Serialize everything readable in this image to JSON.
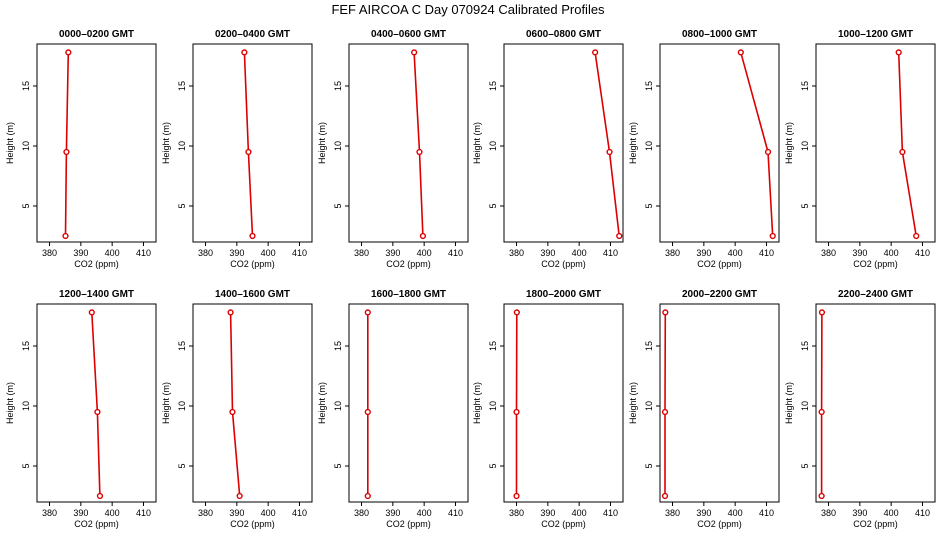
{
  "title": "FEF AIRCOA C  Day 070924  Calibrated Profiles",
  "colors": {
    "series": "#dd0000",
    "axis": "#000000"
  },
  "chart_data": [
    {
      "type": "line",
      "title": "0000–0200 GMT",
      "xlabel": "CO2 (ppm)",
      "ylabel": "Height (m)",
      "xlim": [
        376,
        414
      ],
      "ylim": [
        2,
        18.5
      ],
      "x_ticks": [
        380,
        390,
        400,
        410
      ],
      "y_ticks": [
        5,
        10,
        15
      ],
      "series": [
        {
          "x": [
            385.1,
            385.4,
            386.0
          ],
          "y": [
            2.5,
            9.5,
            17.8
          ]
        }
      ]
    },
    {
      "type": "line",
      "title": "0200–0400 GMT",
      "xlabel": "CO2 (ppm)",
      "ylabel": "Height (m)",
      "xlim": [
        376,
        414
      ],
      "ylim": [
        2,
        18.5
      ],
      "x_ticks": [
        380,
        390,
        400,
        410
      ],
      "y_ticks": [
        5,
        10,
        15
      ],
      "series": [
        {
          "x": [
            395.0,
            393.7,
            392.4
          ],
          "y": [
            2.5,
            9.5,
            17.8
          ]
        }
      ]
    },
    {
      "type": "line",
      "title": "0400–0600 GMT",
      "xlabel": "CO2 (ppm)",
      "ylabel": "Height (m)",
      "xlim": [
        376,
        414
      ],
      "ylim": [
        2,
        18.5
      ],
      "x_ticks": [
        380,
        390,
        400,
        410
      ],
      "y_ticks": [
        5,
        10,
        15
      ],
      "series": [
        {
          "x": [
            399.6,
            398.5,
            396.8
          ],
          "y": [
            2.5,
            9.5,
            17.8
          ]
        }
      ]
    },
    {
      "type": "line",
      "title": "0600–0800 GMT",
      "xlabel": "CO2 (ppm)",
      "ylabel": "Height (m)",
      "xlim": [
        376,
        414
      ],
      "ylim": [
        2,
        18.5
      ],
      "x_ticks": [
        380,
        390,
        400,
        410
      ],
      "y_ticks": [
        5,
        10,
        15
      ],
      "series": [
        {
          "x": [
            412.8,
            409.7,
            405.1
          ],
          "y": [
            2.5,
            9.5,
            17.8
          ]
        }
      ]
    },
    {
      "type": "line",
      "title": "0800–1000 GMT",
      "xlabel": "CO2 (ppm)",
      "ylabel": "Height (m)",
      "xlim": [
        376,
        414
      ],
      "ylim": [
        2,
        18.5
      ],
      "x_ticks": [
        380,
        390,
        400,
        410
      ],
      "y_ticks": [
        5,
        10,
        15
      ],
      "series": [
        {
          "x": [
            412.0,
            410.5,
            401.8
          ],
          "y": [
            2.5,
            9.5,
            17.8
          ]
        }
      ]
    },
    {
      "type": "line",
      "title": "1000–1200 GMT",
      "xlabel": "CO2 (ppm)",
      "ylabel": "Height (m)",
      "xlim": [
        376,
        414
      ],
      "ylim": [
        2,
        18.5
      ],
      "x_ticks": [
        380,
        390,
        400,
        410
      ],
      "y_ticks": [
        5,
        10,
        15
      ],
      "series": [
        {
          "x": [
            408.0,
            403.6,
            402.4
          ],
          "y": [
            2.5,
            9.5,
            17.8
          ]
        }
      ]
    },
    {
      "type": "line",
      "title": "1200–1400 GMT",
      "xlabel": "CO2 (ppm)",
      "ylabel": "Height (m)",
      "xlim": [
        376,
        414
      ],
      "ylim": [
        2,
        18.5
      ],
      "x_ticks": [
        380,
        390,
        400,
        410
      ],
      "y_ticks": [
        5,
        10,
        15
      ],
      "series": [
        {
          "x": [
            396.1,
            395.3,
            393.5
          ],
          "y": [
            2.5,
            9.5,
            17.8
          ]
        }
      ]
    },
    {
      "type": "line",
      "title": "1400–1600 GMT",
      "xlabel": "CO2 (ppm)",
      "ylabel": "Height (m)",
      "xlim": [
        376,
        414
      ],
      "ylim": [
        2,
        18.5
      ],
      "x_ticks": [
        380,
        390,
        400,
        410
      ],
      "y_ticks": [
        5,
        10,
        15
      ],
      "series": [
        {
          "x": [
            390.9,
            388.6,
            388.0
          ],
          "y": [
            2.5,
            9.5,
            17.8
          ]
        }
      ]
    },
    {
      "type": "line",
      "title": "1600–1800 GMT",
      "xlabel": "CO2 (ppm)",
      "ylabel": "Height (m)",
      "xlim": [
        376,
        414
      ],
      "ylim": [
        2,
        18.5
      ],
      "x_ticks": [
        380,
        390,
        400,
        410
      ],
      "y_ticks": [
        5,
        10,
        15
      ],
      "series": [
        {
          "x": [
            382.0,
            382.0,
            382.0
          ],
          "y": [
            2.5,
            9.5,
            17.8
          ]
        }
      ]
    },
    {
      "type": "line",
      "title": "1800–2000 GMT",
      "xlabel": "CO2 (ppm)",
      "ylabel": "Height (m)",
      "xlim": [
        376,
        414
      ],
      "ylim": [
        2,
        18.5
      ],
      "x_ticks": [
        380,
        390,
        400,
        410
      ],
      "y_ticks": [
        5,
        10,
        15
      ],
      "series": [
        {
          "x": [
            380.0,
            380.0,
            380.1
          ],
          "y": [
            2.5,
            9.5,
            17.8
          ]
        }
      ]
    },
    {
      "type": "line",
      "title": "2000–2200 GMT",
      "xlabel": "CO2 (ppm)",
      "ylabel": "Height (m)",
      "xlim": [
        376,
        414
      ],
      "ylim": [
        2,
        18.5
      ],
      "x_ticks": [
        380,
        390,
        400,
        410
      ],
      "y_ticks": [
        5,
        10,
        15
      ],
      "series": [
        {
          "x": [
            377.6,
            377.6,
            377.7
          ],
          "y": [
            2.5,
            9.5,
            17.8
          ]
        }
      ]
    },
    {
      "type": "line",
      "title": "2200–2400 GMT",
      "xlabel": "CO2 (ppm)",
      "ylabel": "Height (m)",
      "xlim": [
        376,
        414
      ],
      "ylim": [
        2,
        18.5
      ],
      "x_ticks": [
        380,
        390,
        400,
        410
      ],
      "y_ticks": [
        5,
        10,
        15
      ],
      "series": [
        {
          "x": [
            377.8,
            377.8,
            377.9
          ],
          "y": [
            2.5,
            9.5,
            17.8
          ]
        }
      ]
    }
  ]
}
